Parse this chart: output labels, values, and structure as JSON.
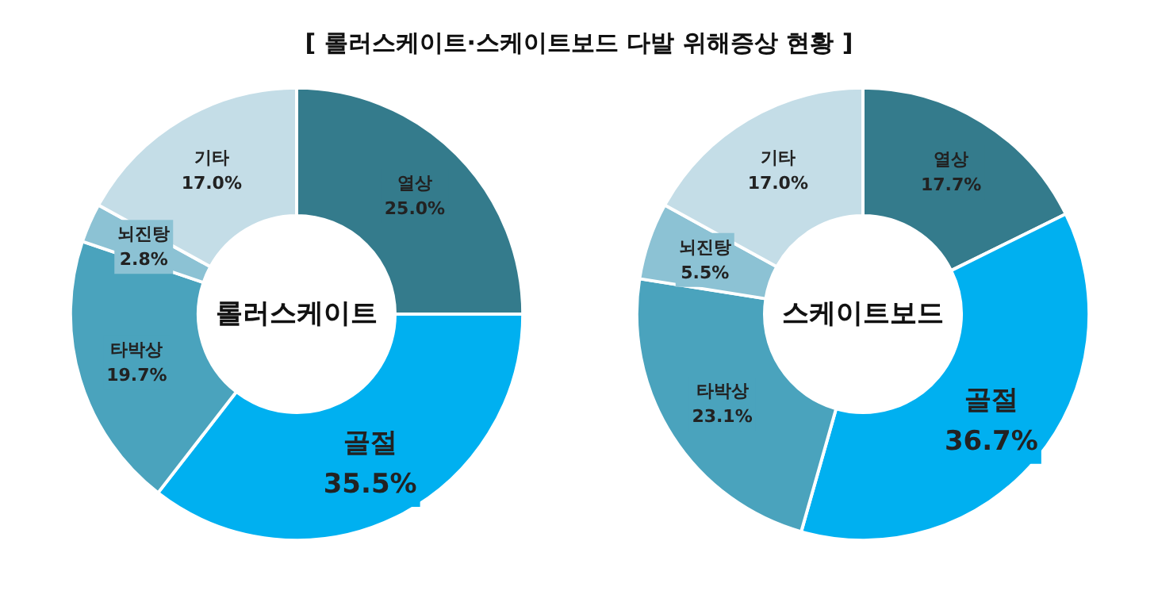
{
  "chart_data": [
    {
      "type": "donut",
      "title": "롤러스케이트",
      "annotations": [
        "[ 롤러스케이트·스케이트보드 다발 위해증상 현황 ]"
      ],
      "categories": [
        "열상",
        "골절",
        "타박상",
        "뇌진탕",
        "기타"
      ],
      "values": [
        25.0,
        35.5,
        19.7,
        2.8,
        17.0
      ],
      "value_labels": [
        "25.0%",
        "35.5%",
        "19.7%",
        "2.8%",
        "17.0%"
      ],
      "colors": [
        "#347b8c",
        "#00b0f0",
        "#4aa3bd",
        "#8cc2d4",
        "#c4dde7"
      ],
      "legend": false
    },
    {
      "type": "donut",
      "title": "스케이트보드",
      "categories": [
        "열상",
        "골절",
        "타박상",
        "뇌진탕",
        "기타"
      ],
      "values": [
        17.7,
        36.7,
        23.1,
        5.5,
        17.0
      ],
      "value_labels": [
        "17.7%",
        "36.7%",
        "23.1%",
        "5.5%",
        "17.0%"
      ],
      "colors": [
        "#347b8c",
        "#00b0f0",
        "#4aa3bd",
        "#8cc2d4",
        "#c4dde7"
      ],
      "legend": false
    }
  ]
}
